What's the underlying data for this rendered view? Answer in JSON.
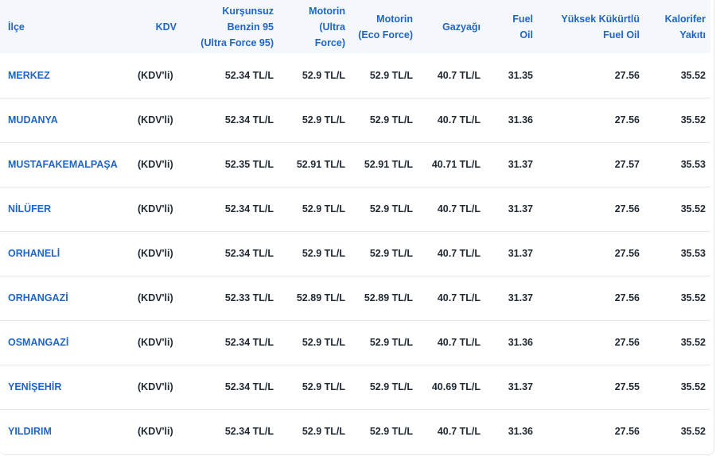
{
  "headers": {
    "ilce": "İlçe",
    "kdv": "KDV",
    "benzin": [
      "Kurşunsuz",
      "Benzin 95",
      "(Ultra Force 95)"
    ],
    "motorin_ultra": [
      "Motorin",
      "(Ultra",
      "Force)"
    ],
    "motorin_eco": [
      "Motorin",
      "(Eco Force)"
    ],
    "gazyagi": "Gazyağı",
    "fuel_oil": [
      "Fuel",
      "Oil"
    ],
    "yuksek_kukurtlu": [
      "Yüksek Kükürtlü",
      "Fuel Oil"
    ],
    "kalorifer": [
      "Kalorifer",
      "Yakıtı"
    ]
  },
  "rows": [
    {
      "ilce": "MERKEZ",
      "kdv": "(KDV'li)",
      "benzin": "52.34 TL/L",
      "motorin_ultra": "52.9 TL/L",
      "motorin_eco": "52.9 TL/L",
      "gazyagi": "40.7 TL/L",
      "fuel_oil": "31.35",
      "yuksek": "27.56",
      "kalorifer": "35.52"
    },
    {
      "ilce": "MUDANYA",
      "kdv": "(KDV'li)",
      "benzin": "52.34 TL/L",
      "motorin_ultra": "52.9 TL/L",
      "motorin_eco": "52.9 TL/L",
      "gazyagi": "40.7 TL/L",
      "fuel_oil": "31.36",
      "yuksek": "27.56",
      "kalorifer": "35.52"
    },
    {
      "ilce": "MUSTAFAKEMALPAŞA",
      "kdv": "(KDV'li)",
      "benzin": "52.35 TL/L",
      "motorin_ultra": "52.91 TL/L",
      "motorin_eco": "52.91 TL/L",
      "gazyagi": "40.71 TL/L",
      "fuel_oil": "31.37",
      "yuksek": "27.57",
      "kalorifer": "35.53"
    },
    {
      "ilce": "NİLÜFER",
      "kdv": "(KDV'li)",
      "benzin": "52.34 TL/L",
      "motorin_ultra": "52.9 TL/L",
      "motorin_eco": "52.9 TL/L",
      "gazyagi": "40.7 TL/L",
      "fuel_oil": "31.37",
      "yuksek": "27.56",
      "kalorifer": "35.52"
    },
    {
      "ilce": "ORHANELİ",
      "kdv": "(KDV'li)",
      "benzin": "52.34 TL/L",
      "motorin_ultra": "52.9 TL/L",
      "motorin_eco": "52.9 TL/L",
      "gazyagi": "40.7 TL/L",
      "fuel_oil": "31.37",
      "yuksek": "27.56",
      "kalorifer": "35.53"
    },
    {
      "ilce": "ORHANGAZİ",
      "kdv": "(KDV'li)",
      "benzin": "52.33 TL/L",
      "motorin_ultra": "52.89 TL/L",
      "motorin_eco": "52.89 TL/L",
      "gazyagi": "40.7 TL/L",
      "fuel_oil": "31.37",
      "yuksek": "27.56",
      "kalorifer": "35.52"
    },
    {
      "ilce": "OSMANGAZİ",
      "kdv": "(KDV'li)",
      "benzin": "52.34 TL/L",
      "motorin_ultra": "52.9 TL/L",
      "motorin_eco": "52.9 TL/L",
      "gazyagi": "40.7 TL/L",
      "fuel_oil": "31.36",
      "yuksek": "27.56",
      "kalorifer": "35.52"
    },
    {
      "ilce": "YENİŞEHİR",
      "kdv": "(KDV'li)",
      "benzin": "52.34 TL/L",
      "motorin_ultra": "52.9 TL/L",
      "motorin_eco": "52.9 TL/L",
      "gazyagi": "40.69 TL/L",
      "fuel_oil": "31.37",
      "yuksek": "27.55",
      "kalorifer": "35.52"
    },
    {
      "ilce": "YILDIRIM",
      "kdv": "(KDV'li)",
      "benzin": "52.34 TL/L",
      "motorin_ultra": "52.9 TL/L",
      "motorin_eco": "52.9 TL/L",
      "gazyagi": "40.7 TL/L",
      "fuel_oil": "31.36",
      "yuksek": "27.56",
      "kalorifer": "35.52"
    }
  ],
  "colors": {
    "accent": "#2166c5",
    "header_bg": "#f4f7fb",
    "text": "#1f2933",
    "divider": "#e3e8ef"
  }
}
